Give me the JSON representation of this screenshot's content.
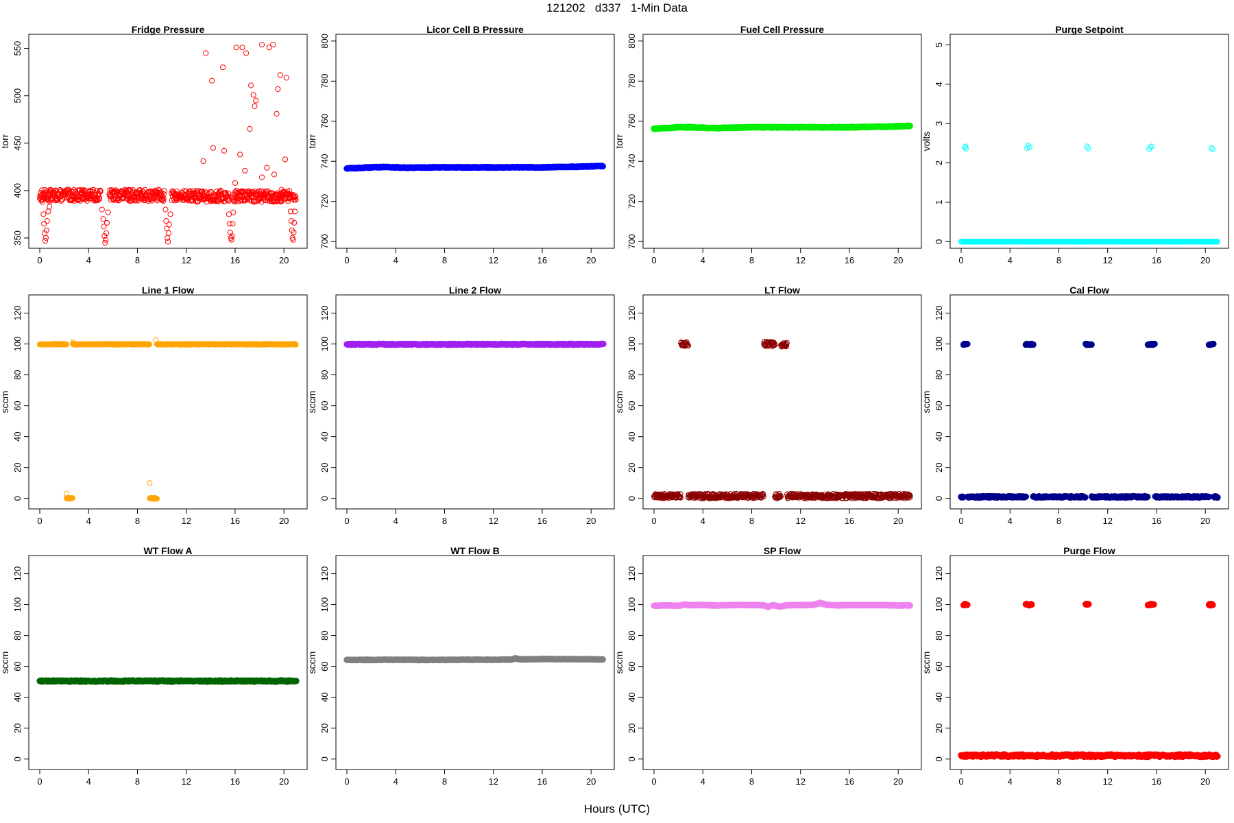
{
  "figure": {
    "title": "121202   d337   1-Min Data",
    "xlabel": "Hours (UTC)"
  },
  "chart_data": [
    {
      "type": "scatter",
      "title": "Fridge Pressure",
      "ylabel": "torr",
      "color": "#ff0000",
      "xlim": [
        0,
        21
      ],
      "ylim": [
        342,
        562
      ],
      "xticks": [
        0,
        4,
        8,
        12,
        16,
        20
      ],
      "yticks": [
        350,
        400,
        450,
        500,
        550
      ],
      "segments": [
        {
          "x": [
            0,
            5
          ],
          "y": 395,
          "jitter": 6
        },
        {
          "x": [
            5.7,
            10.2
          ],
          "y": 395,
          "jitter": 6
        },
        {
          "x": [
            10.8,
            15.5
          ],
          "y": 394,
          "jitter": 6
        },
        {
          "x": [
            15.8,
            20.6
          ],
          "y": 394,
          "jitter": 6
        },
        {
          "x": [
            20.7,
            21.0
          ],
          "y": 394,
          "jitter": 4
        }
      ],
      "points": [
        [
          0.1,
          395
        ],
        [
          0.2,
          388
        ],
        [
          0.3,
          375
        ],
        [
          0.35,
          365
        ],
        [
          0.4,
          355
        ],
        [
          0.45,
          347
        ],
        [
          0.5,
          350
        ],
        [
          0.55,
          358
        ],
        [
          0.6,
          368
        ],
        [
          0.7,
          378
        ],
        [
          0.8,
          383
        ],
        [
          5.1,
          380
        ],
        [
          5.2,
          370
        ],
        [
          5.25,
          362
        ],
        [
          5.3,
          352
        ],
        [
          5.35,
          345
        ],
        [
          5.4,
          348
        ],
        [
          5.45,
          355
        ],
        [
          5.5,
          366
        ],
        [
          5.6,
          377
        ],
        [
          10.3,
          380
        ],
        [
          10.35,
          368
        ],
        [
          10.4,
          360
        ],
        [
          10.45,
          350
        ],
        [
          10.5,
          346
        ],
        [
          10.55,
          355
        ],
        [
          10.6,
          364
        ],
        [
          10.7,
          375
        ],
        [
          15.5,
          375
        ],
        [
          15.55,
          365
        ],
        [
          15.6,
          356
        ],
        [
          15.65,
          350
        ],
        [
          15.7,
          348
        ],
        [
          15.75,
          352
        ],
        [
          15.8,
          365
        ],
        [
          15.85,
          377
        ],
        [
          20.55,
          378
        ],
        [
          20.6,
          368
        ],
        [
          20.65,
          358
        ],
        [
          20.7,
          350
        ],
        [
          20.75,
          348
        ],
        [
          20.8,
          356
        ],
        [
          20.85,
          366
        ],
        [
          20.9,
          378
        ],
        [
          13.6,
          545
        ],
        [
          14.1,
          516
        ],
        [
          14.2,
          445
        ],
        [
          13.4,
          431
        ],
        [
          15.0,
          530
        ],
        [
          15.1,
          442
        ],
        [
          16.1,
          551
        ],
        [
          16.6,
          551
        ],
        [
          16.9,
          545
        ],
        [
          16.8,
          421
        ],
        [
          17.3,
          511
        ],
        [
          17.2,
          465
        ],
        [
          17.6,
          489
        ],
        [
          17.7,
          495
        ],
        [
          17.5,
          501
        ],
        [
          18.2,
          554
        ],
        [
          18.2,
          414
        ],
        [
          18.6,
          424
        ],
        [
          18.8,
          551
        ],
        [
          19.1,
          554
        ],
        [
          19.4,
          481
        ],
        [
          19.5,
          507
        ],
        [
          19.7,
          522
        ],
        [
          20.2,
          519
        ],
        [
          20.1,
          433
        ],
        [
          19.2,
          417
        ],
        [
          19.8,
          401
        ],
        [
          16.4,
          438
        ],
        [
          16.0,
          408
        ]
      ],
      "marker": "open-circle"
    },
    {
      "type": "scatter",
      "title": "Licor Cell B Pressure",
      "ylabel": "torr",
      "color": "#0000ff",
      "xlim": [
        0,
        21
      ],
      "ylim": [
        698,
        802
      ],
      "xticks": [
        0,
        4,
        8,
        12,
        16,
        20
      ],
      "yticks": [
        700,
        720,
        740,
        760,
        780,
        800
      ],
      "x": [
        0,
        1,
        2,
        3,
        4,
        5,
        6,
        7,
        8,
        9,
        10,
        11,
        12,
        13,
        14,
        15,
        16,
        17,
        18,
        19,
        20,
        21
      ],
      "y": [
        736.5,
        736.7,
        737.0,
        737.2,
        737.0,
        736.8,
        736.9,
        737.0,
        737.0,
        737.0,
        737.0,
        737.0,
        737.0,
        737.0,
        737.0,
        737.0,
        737.0,
        737.1,
        737.2,
        737.3,
        737.5,
        737.7
      ],
      "marker": "filled-band"
    },
    {
      "type": "scatter",
      "title": "Fuel Cell Pressure",
      "ylabel": "torr",
      "color": "#00ee00",
      "xlim": [
        0,
        21
      ],
      "ylim": [
        698,
        802
      ],
      "xticks": [
        0,
        4,
        8,
        12,
        16,
        20
      ],
      "yticks": [
        700,
        720,
        740,
        760,
        780,
        800
      ],
      "x": [
        0,
        1,
        2,
        3,
        4,
        5,
        6,
        7,
        8,
        9,
        10,
        11,
        12,
        13,
        14,
        15,
        16,
        17,
        18,
        19,
        20,
        21
      ],
      "y": [
        756.3,
        756.6,
        757.0,
        757.0,
        756.8,
        756.6,
        756.7,
        756.9,
        757.0,
        757.0,
        757.0,
        757.0,
        757.0,
        757.0,
        757.0,
        757.0,
        757.0,
        757.1,
        757.2,
        757.3,
        757.5,
        757.7
      ],
      "marker": "filled-band"
    },
    {
      "type": "scatter",
      "title": "Purge Setpoint",
      "ylabel": "volts",
      "color": "#00ffff",
      "xlim": [
        0,
        21
      ],
      "ylim": [
        -0.1,
        5.2
      ],
      "xticks": [
        0,
        4,
        8,
        12,
        16,
        20
      ],
      "yticks": [
        0,
        1,
        2,
        3,
        4,
        5
      ],
      "baseline": 0,
      "points": [
        [
          0.3,
          2.4
        ],
        [
          0.4,
          2.36
        ],
        [
          0.35,
          2.42
        ],
        [
          5.4,
          2.38
        ],
        [
          5.5,
          2.44
        ],
        [
          5.6,
          2.4
        ],
        [
          10.3,
          2.42
        ],
        [
          10.4,
          2.37
        ],
        [
          15.4,
          2.35
        ],
        [
          15.5,
          2.4
        ],
        [
          15.6,
          2.42
        ],
        [
          20.5,
          2.38
        ],
        [
          20.6,
          2.35
        ]
      ],
      "marker": "open-circle"
    },
    {
      "type": "scatter",
      "title": "Line 1 Flow",
      "ylabel": "sccm",
      "color": "#ffa500",
      "xlim": [
        0,
        21
      ],
      "ylim": [
        -5,
        130
      ],
      "xticks": [
        0,
        4,
        8,
        12,
        16,
        20
      ],
      "yticks": [
        0,
        20,
        40,
        60,
        80,
        100,
        120
      ],
      "segments": [
        {
          "x": [
            0,
            2.2
          ],
          "y": 99.8,
          "jitter": 0.3
        },
        {
          "x": [
            2.7,
            9.0
          ],
          "y": 99.8,
          "jitter": 0.3
        },
        {
          "x": [
            9.6,
            21.0
          ],
          "y": 99.8,
          "jitter": 0.3
        },
        {
          "x": [
            2.2,
            2.7
          ],
          "y": 0,
          "jitter": 0.3
        },
        {
          "x": [
            9.0,
            9.6
          ],
          "y": 0,
          "jitter": 0.3
        }
      ],
      "points": [
        [
          2.2,
          3
        ],
        [
          2.7,
          101
        ],
        [
          9.0,
          10
        ],
        [
          9.5,
          102.5
        ]
      ],
      "marker": "open-circle"
    },
    {
      "type": "scatter",
      "title": "Line 2 Flow",
      "ylabel": "sccm",
      "color": "#a020f0",
      "xlim": [
        0,
        21
      ],
      "ylim": [
        -5,
        130
      ],
      "xticks": [
        0,
        4,
        8,
        12,
        16,
        20
      ],
      "yticks": [
        0,
        20,
        40,
        60,
        80,
        100,
        120
      ],
      "segments": [
        {
          "x": [
            0,
            21
          ],
          "y": 99.8,
          "jitter": 0.3
        }
      ],
      "marker": "filled-band"
    },
    {
      "type": "scatter",
      "title": "LT Flow",
      "ylabel": "sccm",
      "color": "#8b0000",
      "xlim": [
        0,
        21
      ],
      "ylim": [
        -5,
        130
      ],
      "xticks": [
        0,
        4,
        8,
        12,
        16,
        20
      ],
      "yticks": [
        0,
        20,
        40,
        60,
        80,
        100,
        120
      ],
      "segments": [
        {
          "x": [
            0,
            2.2
          ],
          "y": 1.5,
          "jitter": 1.5
        },
        {
          "x": [
            2.8,
            9.0
          ],
          "y": 1.5,
          "jitter": 1.5
        },
        {
          "x": [
            9.9,
            10.4
          ],
          "y": 1.5,
          "jitter": 1.5
        },
        {
          "x": [
            10.9,
            21.0
          ],
          "y": 1.5,
          "jitter": 1.5
        },
        {
          "x": [
            2.2,
            2.8
          ],
          "y": 100,
          "jitter": 1.5
        },
        {
          "x": [
            9.0,
            9.9
          ],
          "y": 100,
          "jitter": 1.5
        },
        {
          "x": [
            10.4,
            10.9
          ],
          "y": 99.5,
          "jitter": 1.5
        }
      ],
      "marker": "open-circle"
    },
    {
      "type": "scatter",
      "title": "Cal Flow",
      "ylabel": "sccm",
      "color": "#00008b",
      "xlim": [
        0,
        21
      ],
      "ylim": [
        -5,
        130
      ],
      "xticks": [
        0,
        4,
        8,
        12,
        16,
        20
      ],
      "yticks": [
        0,
        20,
        40,
        60,
        80,
        100,
        120
      ],
      "segments": [
        {
          "x": [
            0,
            0.2
          ],
          "y": 1,
          "jitter": 0.4
        },
        {
          "x": [
            0.55,
            5.3
          ],
          "y": 1,
          "jitter": 0.4
        },
        {
          "x": [
            5.9,
            10.2
          ],
          "y": 1,
          "jitter": 0.4
        },
        {
          "x": [
            10.7,
            15.3
          ],
          "y": 1,
          "jitter": 0.4
        },
        {
          "x": [
            15.9,
            20.3
          ],
          "y": 1,
          "jitter": 0.4
        },
        {
          "x": [
            20.7,
            21.0
          ],
          "y": 1,
          "jitter": 0.4
        },
        {
          "x": [
            0.2,
            0.55
          ],
          "y": 99.8,
          "jitter": 0.3
        },
        {
          "x": [
            5.3,
            5.9
          ],
          "y": 99.8,
          "jitter": 0.3
        },
        {
          "x": [
            10.2,
            10.7
          ],
          "y": 99.8,
          "jitter": 0.3
        },
        {
          "x": [
            15.3,
            15.9
          ],
          "y": 99.8,
          "jitter": 0.3
        },
        {
          "x": [
            20.3,
            20.7
          ],
          "y": 99.8,
          "jitter": 0.3
        }
      ],
      "marker": "filled-band"
    },
    {
      "type": "scatter",
      "title": "WT Flow A",
      "ylabel": "sccm",
      "color": "#006400",
      "xlim": [
        0,
        21
      ],
      "ylim": [
        -5,
        130
      ],
      "xticks": [
        0,
        4,
        8,
        12,
        16,
        20
      ],
      "yticks": [
        0,
        20,
        40,
        60,
        80,
        100,
        120
      ],
      "segments": [
        {
          "x": [
            0,
            21
          ],
          "y": 50.5,
          "jitter": 0.4
        }
      ],
      "marker": "filled-band"
    },
    {
      "type": "scatter",
      "title": "WT Flow B",
      "ylabel": "sccm",
      "color": "#808080",
      "xlim": [
        0,
        21
      ],
      "ylim": [
        -5,
        130
      ],
      "xticks": [
        0,
        4,
        8,
        12,
        16,
        20
      ],
      "yticks": [
        0,
        20,
        40,
        60,
        80,
        100,
        120
      ],
      "x": [
        0,
        2,
        4,
        6,
        8,
        10,
        12,
        13.5,
        13.8,
        14.2,
        16,
        18,
        20,
        21
      ],
      "y": [
        64.2,
        64.2,
        64.3,
        64.2,
        64.2,
        64.3,
        64.3,
        64.4,
        65.2,
        64.5,
        64.8,
        64.7,
        64.6,
        64.5
      ],
      "marker": "filled-band"
    },
    {
      "type": "scatter",
      "title": "SP Flow",
      "ylabel": "sccm",
      "color": "#ee82ee",
      "xlim": [
        0,
        21
      ],
      "ylim": [
        -5,
        130
      ],
      "xticks": [
        0,
        4,
        8,
        12,
        16,
        20
      ],
      "yticks": [
        0,
        20,
        40,
        60,
        80,
        100,
        120
      ],
      "x": [
        0,
        1,
        2,
        2.5,
        3,
        4,
        5,
        6,
        7,
        8,
        9,
        9.3,
        9.8,
        10.3,
        11,
        12,
        13,
        13.6,
        14.2,
        15,
        16,
        17,
        18,
        19,
        20,
        21
      ],
      "y": [
        99.3,
        99.5,
        99.2,
        100,
        99.6,
        99.8,
        99.4,
        99.6,
        99.8,
        99.7,
        99.5,
        98.6,
        99.6,
        98.8,
        99.6,
        99.7,
        99.8,
        101.0,
        99.8,
        99.5,
        99.7,
        99.6,
        99.7,
        99.6,
        99.4,
        99.5
      ],
      "marker": "filled-band"
    },
    {
      "type": "scatter",
      "title": "Purge Flow",
      "ylabel": "sccm",
      "color": "#ff0000",
      "xlim": [
        0,
        21
      ],
      "ylim": [
        -5,
        130
      ],
      "xticks": [
        0,
        4,
        8,
        12,
        16,
        20
      ],
      "yticks": [
        0,
        20,
        40,
        60,
        80,
        100,
        120
      ],
      "segments": [
        {
          "x": [
            0,
            21
          ],
          "y": 2.2,
          "jitter": 0.8
        },
        {
          "x": [
            0.2,
            0.5
          ],
          "y": 100,
          "jitter": 0.5
        },
        {
          "x": [
            5.3,
            5.8
          ],
          "y": 100,
          "jitter": 0.5
        },
        {
          "x": [
            10.2,
            10.5
          ],
          "y": 100,
          "jitter": 0.5
        },
        {
          "x": [
            15.3,
            15.8
          ],
          "y": 100,
          "jitter": 0.5
        },
        {
          "x": [
            20.3,
            20.6
          ],
          "y": 100,
          "jitter": 0.5
        }
      ],
      "marker": "filled-band"
    }
  ]
}
